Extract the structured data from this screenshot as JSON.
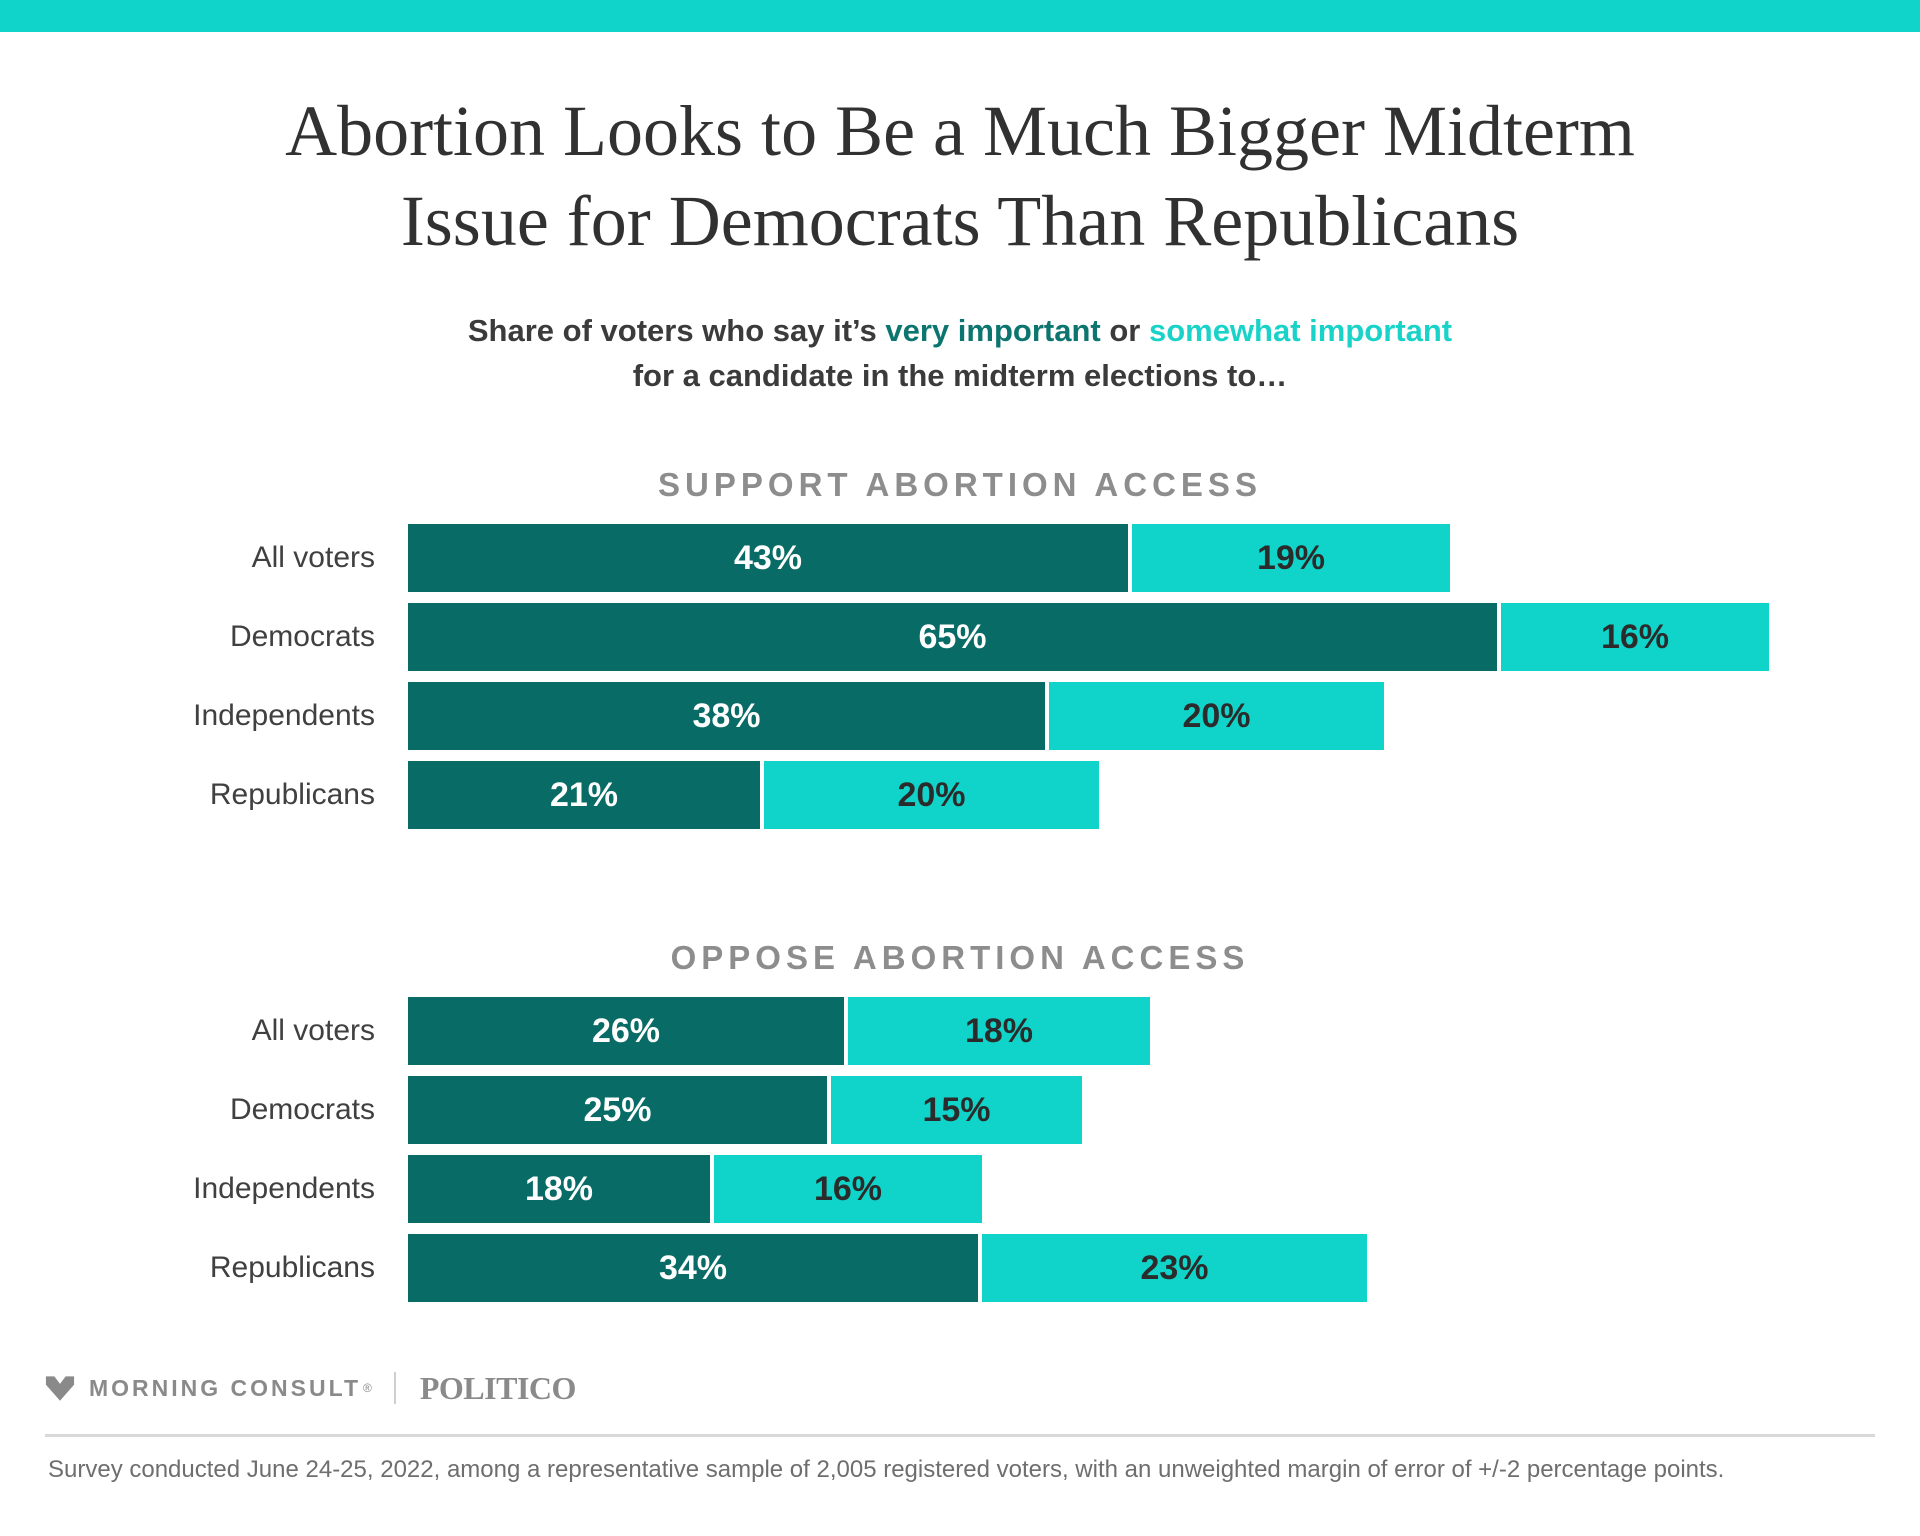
{
  "colors": {
    "accent_cyan": "#10d4c9",
    "dark_teal": "#086b66",
    "subtitle_teal": "#0c756f",
    "subtitle_cyan": "#19d3c9"
  },
  "title": {
    "line1": "Abortion Looks to Be a Much Bigger Midterm",
    "line2": "Issue for Democrats Than Republicans"
  },
  "subtitle": {
    "prefix": "Share of voters who say it’s ",
    "very_important": "very important",
    "connector": " or ",
    "somewhat_important": "somewhat important",
    "line2": "for a candidate in the midterm elections to…"
  },
  "chart_data": [
    {
      "type": "bar",
      "orientation": "horizontal",
      "title": "SUPPORT ABORTION ACCESS",
      "categories": [
        "All voters",
        "Democrats",
        "Independents",
        "Republicans"
      ],
      "series": [
        {
          "name": "very important",
          "color": "#086b66",
          "values": [
            43,
            65,
            38,
            21
          ]
        },
        {
          "name": "somewhat important",
          "color": "#10d4c9",
          "values": [
            19,
            16,
            20,
            20
          ]
        }
      ],
      "unit": "%",
      "xlim": [
        0,
        85
      ],
      "grid": false,
      "legend": "inline-in-subtitle",
      "value_labels": [
        "43%",
        "65%",
        "38%",
        "21%",
        "19%",
        "16%",
        "20%",
        "20%"
      ]
    },
    {
      "type": "bar",
      "orientation": "horizontal",
      "title": "OPPOSE ABORTION ACCESS",
      "categories": [
        "All voters",
        "Democrats",
        "Independents",
        "Republicans"
      ],
      "series": [
        {
          "name": "very important",
          "color": "#086b66",
          "values": [
            26,
            25,
            18,
            34
          ]
        },
        {
          "name": "somewhat important",
          "color": "#10d4c9",
          "values": [
            18,
            15,
            16,
            23
          ]
        }
      ],
      "unit": "%",
      "xlim": [
        0,
        85
      ],
      "grid": false,
      "legend": "inline-in-subtitle",
      "value_labels": [
        "26%",
        "25%",
        "18%",
        "34%",
        "18%",
        "15%",
        "16%",
        "23%"
      ]
    }
  ],
  "footer": {
    "brand1": "MORNING CONSULT",
    "brand1_reg": "®",
    "brand2": "POLITICO",
    "footnote": "Survey conducted June 24-25, 2022, among a representative sample of 2,005 registered voters, with an unweighted margin of error of +/-2 percentage points."
  }
}
